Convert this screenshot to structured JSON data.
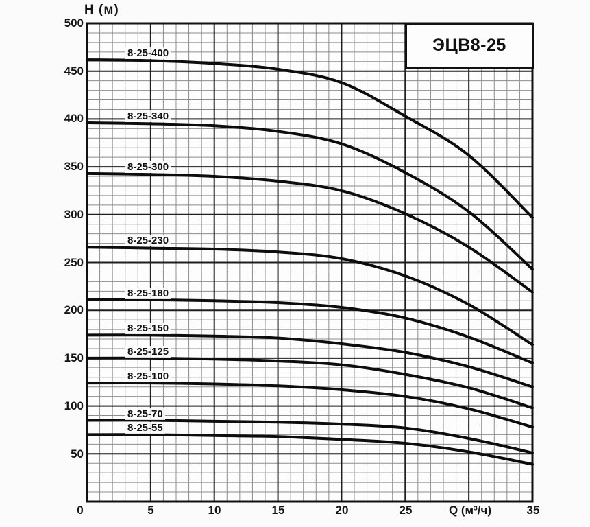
{
  "page": {
    "background": "#fbfbfb"
  },
  "chart_data": {
    "type": "line",
    "title": "ЭЦВ8-25",
    "ylabel": "H (м)",
    "xlabel": "Q (м³/ч)",
    "x": [
      0,
      5,
      10,
      15,
      20,
      25,
      30,
      35
    ],
    "xlim": [
      0,
      35
    ],
    "ylim": [
      0,
      500
    ],
    "x_tick_labels": [
      "0",
      "5",
      "10",
      "15",
      "20",
      "25",
      "Q (м³/ч)",
      "35"
    ],
    "y_ticks": [
      "500",
      "450",
      "400",
      "350",
      "300",
      "250",
      "200",
      "150",
      "100",
      "50"
    ],
    "origin_label": "0",
    "grid": {
      "minor_x_step": 1,
      "minor_y_step": 10,
      "major_x_step": 5,
      "major_y_step": 50,
      "grid_on": true
    },
    "legend_position": "labels-on-curves",
    "series": [
      {
        "name": "8-25-400",
        "label": "8-25-400",
        "values": [
          462,
          461,
          458,
          452,
          438,
          403,
          362,
          297
        ]
      },
      {
        "name": "8-25-340",
        "label": "8-25-340",
        "values": [
          396,
          395,
          393,
          387,
          374,
          344,
          303,
          243
        ]
      },
      {
        "name": "8-25-300",
        "label": "8-25-300",
        "values": [
          343,
          342,
          340,
          335,
          325,
          301,
          266,
          219
        ]
      },
      {
        "name": "8-25-230",
        "label": "8-25-230",
        "values": [
          266,
          265,
          264,
          261,
          254,
          236,
          206,
          164
        ]
      },
      {
        "name": "8-25-180",
        "label": "8-25-180",
        "values": [
          211,
          211,
          210,
          208,
          203,
          192,
          172,
          145
        ]
      },
      {
        "name": "8-25-150",
        "label": "8-25-150",
        "values": [
          174,
          174,
          173,
          171,
          165,
          156,
          141,
          120
        ]
      },
      {
        "name": "8-25-125",
        "label": "8-25-125",
        "values": [
          150,
          150,
          149,
          147,
          143,
          133,
          119,
          98
        ]
      },
      {
        "name": "8-25-100",
        "label": "8-25-100",
        "values": [
          124,
          124,
          123,
          121,
          117,
          110,
          97,
          78
        ]
      },
      {
        "name": "8-25-70",
        "label": "8-25-70",
        "values": [
          85,
          85,
          84,
          83,
          81,
          77,
          66,
          51
        ]
      },
      {
        "name": "8-25-55",
        "label": "8-25-55",
        "values": [
          70,
          70,
          69,
          68,
          65,
          61,
          52,
          39
        ]
      }
    ],
    "colors": {
      "curve": "#0d0d0d",
      "major_grid": "#1f1f1f",
      "minor_grid": "#8d8d8d",
      "border": "#111111",
      "plot_fill": "#fdfdfd"
    }
  }
}
